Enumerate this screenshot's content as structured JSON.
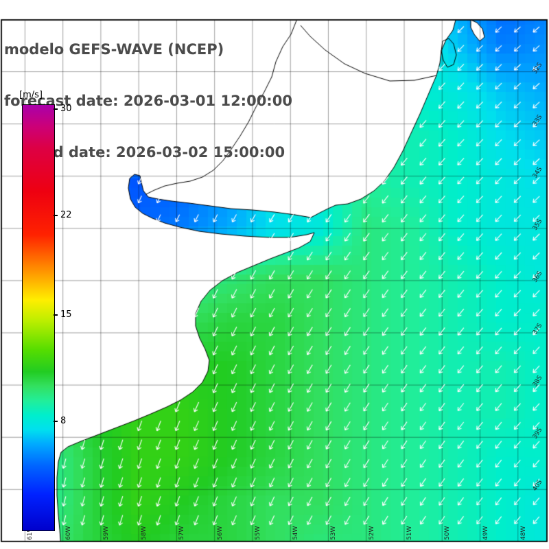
{
  "header": {
    "line1": "modelo GEFS-WAVE (NCEP)",
    "line2": "forecast date: 2026-03-01 12:00:00",
    "line3": "    valid date: 2026-03-02 15:00:00"
  },
  "colorbar": {
    "unit_label": "[m/s]",
    "ticks": [
      {
        "label": "30",
        "pos": 0.01
      },
      {
        "label": "22",
        "pos": 0.26
      },
      {
        "label": "15",
        "pos": 0.494
      },
      {
        "label": "8",
        "pos": 0.744
      }
    ]
  },
  "map": {
    "lat_labels": [
      "32S",
      "33S",
      "34S",
      "35S",
      "36S",
      "37S",
      "38S",
      "39S",
      "40S"
    ],
    "lon_labels": [
      "61W",
      "60W",
      "59W",
      "58W",
      "57W",
      "56W",
      "55W",
      "54W",
      "53W",
      "52W",
      "51W",
      "50W",
      "49W",
      "48W"
    ]
  },
  "chart_data": {
    "type": "heatmap",
    "title": "modelo GEFS-WAVE (NCEP)",
    "subtitle_lines": [
      "forecast date: 2026-03-01 12:00:00",
      "valid date: 2026-03-02 15:00:00"
    ],
    "units": "m/s",
    "value_range": [
      0.5,
      30
    ],
    "colorbar_ticks": [
      30,
      22,
      15,
      8
    ],
    "x_tick_labels": [
      "61W",
      "60W",
      "59W",
      "58W",
      "57W",
      "56W",
      "55W",
      "54W",
      "53W",
      "52W",
      "51W",
      "50W",
      "49W",
      "48W"
    ],
    "y_tick_labels": [
      "32S",
      "33S",
      "34S",
      "35S",
      "36S",
      "37S",
      "38S",
      "39S",
      "40S"
    ],
    "grid": true,
    "legend_position": "left-colorbar",
    "arrow_color": "#ffffff",
    "land_color": "#ffffff",
    "colormap": [
      [
        0.5,
        "#0000cc"
      ],
      [
        3,
        "#0022ff"
      ],
      [
        5,
        "#0066ff"
      ],
      [
        6.5,
        "#00aaff"
      ],
      [
        7.5,
        "#00e0ee"
      ],
      [
        8.5,
        "#00eecc"
      ],
      [
        9.5,
        "#22ee99"
      ],
      [
        10.5,
        "#33e060"
      ],
      [
        11.5,
        "#22cc22"
      ],
      [
        13,
        "#55dd00"
      ],
      [
        15,
        "#bbee00"
      ],
      [
        16.5,
        "#ffee00"
      ],
      [
        18,
        "#ffaa00"
      ],
      [
        19.5,
        "#ff6600"
      ],
      [
        21,
        "#ff2200"
      ],
      [
        24,
        "#ee0011"
      ],
      [
        27,
        "#dd0044"
      ],
      [
        28.5,
        "#cc0077"
      ],
      [
        30,
        "#aa00aa"
      ]
    ],
    "speed_grid": [
      [
        9,
        9,
        9,
        9,
        9,
        8.5,
        8,
        8,
        9,
        8,
        6.5,
        5,
        5.5
      ],
      [
        9,
        9,
        9,
        9,
        8.5,
        8.5,
        8,
        8,
        9,
        8.5,
        7,
        5.5,
        6
      ],
      [
        9,
        9,
        9,
        8.5,
        8.5,
        8.5,
        8.5,
        8.5,
        9,
        8.5,
        8,
        7,
        6.5
      ],
      [
        8,
        8,
        7.5,
        7,
        6.5,
        8,
        9,
        9.5,
        9.5,
        9,
        8.5,
        7.5,
        7
      ],
      [
        7,
        6,
        5,
        4.5,
        5,
        6,
        8,
        8.5,
        9.5,
        9,
        8.5,
        8,
        7.5
      ],
      [
        7,
        6,
        5.5,
        5,
        5.5,
        6.5,
        7.5,
        8,
        10,
        9.5,
        8.5,
        8,
        8
      ],
      [
        9,
        9,
        9,
        9,
        9.5,
        10,
        10.5,
        10.5,
        10,
        9.5,
        9,
        8.5,
        8
      ],
      [
        10,
        10,
        10,
        10.5,
        10.5,
        11,
        11,
        10.5,
        10,
        9.5,
        9,
        8.5,
        8.5
      ],
      [
        11,
        11,
        11,
        11,
        11.5,
        11.5,
        11,
        10.5,
        10,
        9.5,
        9,
        9,
        8.5
      ],
      [
        10,
        10.5,
        11.5,
        12,
        12,
        11.5,
        11,
        10.5,
        10,
        9.5,
        9,
        9,
        8.5
      ],
      [
        9,
        9.5,
        11,
        12,
        12,
        11.5,
        11,
        10.5,
        10,
        9.5,
        9,
        8.5,
        8.5
      ],
      [
        9,
        9.5,
        11,
        12,
        11.5,
        11,
        10.5,
        10.5,
        10,
        9.5,
        9,
        8.5,
        8
      ],
      [
        9,
        10,
        11,
        11.5,
        11,
        11,
        10.5,
        10,
        10,
        9.5,
        9,
        8.5,
        8
      ]
    ],
    "dir_grid": [
      [
        110,
        113,
        115,
        118,
        120,
        123,
        125,
        128,
        130,
        133,
        135,
        138,
        140
      ],
      [
        109,
        112,
        114,
        117,
        119,
        122,
        124,
        127,
        129,
        132,
        134,
        137,
        139
      ],
      [
        108,
        111,
        113,
        116,
        118,
        121,
        123,
        126,
        128,
        131,
        133,
        136,
        138
      ],
      [
        108,
        110,
        113,
        115,
        118,
        120,
        123,
        125,
        128,
        130,
        133,
        135,
        138
      ],
      [
        107,
        109,
        112,
        114,
        117,
        119,
        122,
        124,
        127,
        129,
        132,
        134,
        137
      ],
      [
        106,
        108,
        111,
        113,
        116,
        118,
        121,
        123,
        126,
        128,
        131,
        133,
        136
      ],
      [
        105,
        108,
        110,
        113,
        115,
        118,
        120,
        123,
        125,
        128,
        130,
        133,
        135
      ],
      [
        104,
        107,
        109,
        112,
        114,
        117,
        119,
        122,
        124,
        127,
        129,
        132,
        134
      ],
      [
        103,
        106,
        108,
        111,
        113,
        116,
        118,
        121,
        123,
        126,
        128,
        131,
        133
      ],
      [
        103,
        105,
        108,
        110,
        113,
        115,
        118,
        120,
        123,
        125,
        128,
        130,
        133
      ],
      [
        102,
        104,
        107,
        109,
        112,
        114,
        117,
        119,
        122,
        124,
        127,
        129,
        132
      ],
      [
        101,
        103,
        106,
        108,
        111,
        113,
        116,
        118,
        121,
        123,
        126,
        128,
        131
      ],
      [
        100,
        103,
        105,
        108,
        110,
        113,
        115,
        118,
        120,
        123,
        125,
        128,
        130
      ]
    ]
  }
}
